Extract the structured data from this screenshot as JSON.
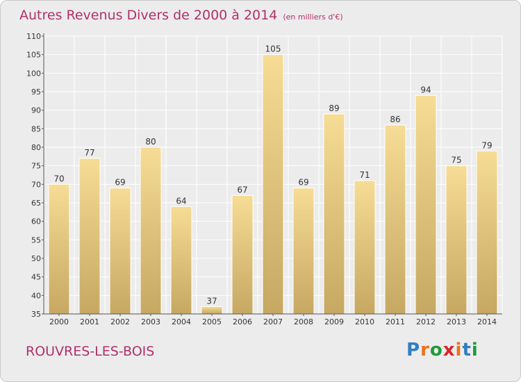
{
  "title": "Autres Revenus Divers de 2000 à 2014",
  "unit_note": "(en milliers d'€)",
  "commune": "ROUVRES-LES-BOIS",
  "brand": "Proxiti",
  "colors": {
    "title": "#b0306a",
    "bar_light": "#f6dc94",
    "bar_dark": "#c6a862",
    "background": "#ececec",
    "grid": "#ffffff"
  },
  "chart_data": {
    "type": "bar",
    "categories": [
      "2000",
      "2001",
      "2002",
      "2003",
      "2004",
      "2005",
      "2006",
      "2007",
      "2008",
      "2009",
      "2010",
      "2011",
      "2012",
      "2013",
      "2014"
    ],
    "values": [
      70,
      77,
      69,
      80,
      64,
      37,
      67,
      105,
      69,
      89,
      71,
      86,
      94,
      75,
      79
    ],
    "ylim": [
      35,
      110
    ],
    "yticks": [
      35,
      40,
      45,
      50,
      55,
      60,
      65,
      70,
      75,
      80,
      85,
      90,
      95,
      100,
      105,
      110
    ],
    "grid": true,
    "data_labels": true
  }
}
